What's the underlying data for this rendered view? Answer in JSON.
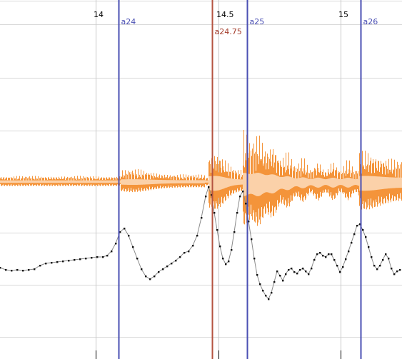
{
  "timeline": {
    "time_ticks": [
      {
        "label": "14",
        "value": 14.0
      },
      {
        "label": "14.5",
        "value": 14.5
      },
      {
        "label": "15",
        "value": 15.0
      }
    ],
    "beat_markers": [
      {
        "label": "a24",
        "time": 14.0944,
        "color": "#4a4fb3"
      },
      {
        "label": "a24.75",
        "time": 14.4755,
        "color": "#b45340"
      },
      {
        "label": "a25",
        "time": 14.6182,
        "color": "#4a4fb3"
      },
      {
        "label": "a26",
        "time": 15.0811,
        "color": "#4a4fb3"
      }
    ]
  },
  "colors": {
    "background": "#ffffff",
    "gridline": "#d8d8d8",
    "time_tick_line": "#c8c8c8",
    "waveform_outer": "#f4943a",
    "waveform_inner": "#fbd1a9",
    "envelope_line": "#8a8a8a",
    "envelope_dots": "#111111",
    "marker_red_text": "#a43b2a"
  }
}
